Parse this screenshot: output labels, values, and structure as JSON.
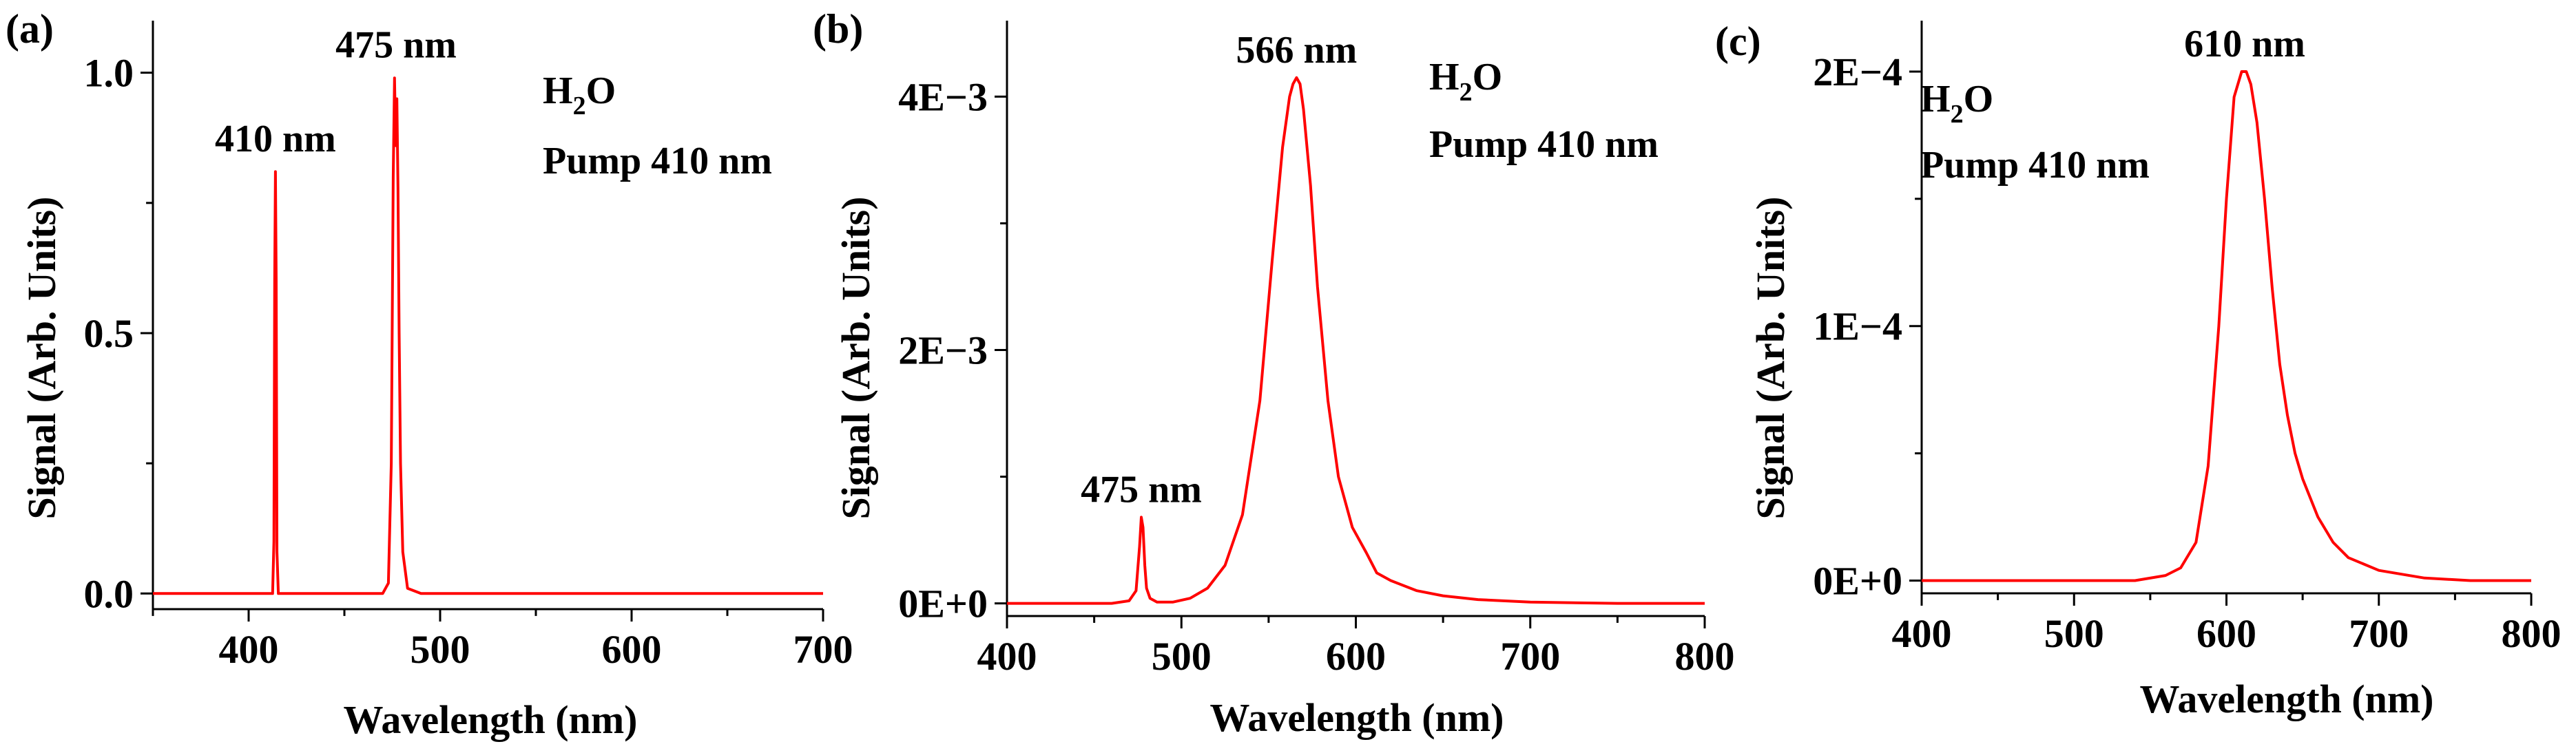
{
  "figure": {
    "panels": [
      "(a)",
      "(b)",
      "(c)"
    ]
  },
  "chart_data": [
    {
      "type": "line",
      "panel_label": "(a)",
      "xlabel": "Wavelength (nm)",
      "ylabel": "Signal (Arb. Units)",
      "xlim": [
        350,
        700
      ],
      "ylim": [
        -0.03,
        1.1
      ],
      "xticks": [
        400,
        500,
        600,
        700
      ],
      "yticks": [
        0.0,
        0.5,
        1.0
      ],
      "ytick_labels": [
        "0.0",
        "0.5",
        "1.0"
      ],
      "legend": {
        "species_main": "H",
        "species_sub": "2",
        "species_tail": "O",
        "pump": "Pump 410 nm"
      },
      "annotations": [
        {
          "text": "410 nm",
          "x": 414,
          "y": 0.82
        },
        {
          "text": "475 nm",
          "x": 477,
          "y": 1.0
        }
      ],
      "series": [
        {
          "name": "H2O, Pump 410 nm",
          "color": "#ff0000",
          "x": [
            350,
            412.5,
            413.2,
            413.6,
            414.0,
            414.4,
            414.8,
            415.5,
            470,
            473,
            474.5,
            475.5,
            476.2,
            476.8,
            477.4,
            478.0,
            478.6,
            479.3,
            480.5,
            483,
            490,
            700
          ],
          "y": [
            0.0,
            0.0,
            0.1,
            0.6,
            0.81,
            0.6,
            0.08,
            0.0,
            0.0,
            0.02,
            0.25,
            0.8,
            0.99,
            0.86,
            0.95,
            0.78,
            0.5,
            0.25,
            0.08,
            0.01,
            0.0,
            0.0
          ]
        }
      ]
    },
    {
      "type": "line",
      "panel_label": "(b)",
      "xlabel": "Wavelength (nm)",
      "ylabel": "Signal (Arb. Units)",
      "xlim": [
        400,
        800
      ],
      "ylim": [
        -0.0001,
        0.0046
      ],
      "xticks": [
        400,
        500,
        600,
        700,
        800
      ],
      "yticks": [
        0,
        0.002,
        0.004
      ],
      "ytick_labels": [
        "0E+0",
        "2E−3",
        "4E−3"
      ],
      "legend": {
        "species_main": "H",
        "species_sub": "2",
        "species_tail": "O",
        "pump": "Pump 410 nm"
      },
      "annotations": [
        {
          "text": "475 nm",
          "x": 477,
          "y": 0.00068
        },
        {
          "text": "566 nm",
          "x": 566,
          "y": 0.00415
        }
      ],
      "series": [
        {
          "name": "H2O, Pump 410 nm",
          "color": "#ff0000",
          "x": [
            400,
            460,
            470,
            474,
            476,
            477,
            478,
            479,
            480,
            482,
            486,
            495,
            505,
            515,
            525,
            535,
            545,
            552,
            558,
            562,
            564,
            566,
            568,
            570,
            574,
            578,
            584,
            590,
            598,
            606,
            609,
            612,
            620,
            635,
            650,
            670,
            700,
            750,
            800
          ],
          "y": [
            0.0,
            0.0,
            2e-05,
            0.0001,
            0.00045,
            0.00068,
            0.0006,
            0.0003,
            0.00012,
            4e-05,
            1e-05,
            1e-05,
            4e-05,
            0.00012,
            0.0003,
            0.0007,
            0.0016,
            0.0027,
            0.0036,
            0.004,
            0.0041,
            0.00415,
            0.0041,
            0.0039,
            0.0033,
            0.0025,
            0.0016,
            0.001,
            0.0006,
            0.0004,
            0.00032,
            0.00024,
            0.00018,
            0.0001,
            6e-05,
            3e-05,
            1e-05,
            0.0,
            0.0
          ]
        }
      ]
    },
    {
      "type": "line",
      "panel_label": "(c)",
      "xlabel": "Wavelength (nm)",
      "ylabel": "Signal (Arb. Units)",
      "xlim": [
        400,
        800
      ],
      "ylim": [
        -5e-06,
        0.00022
      ],
      "xticks": [
        400,
        500,
        600,
        700,
        800
      ],
      "yticks": [
        0,
        0.0001,
        0.0002
      ],
      "ytick_labels": [
        "0E+0",
        "1E−4",
        "2E−4"
      ],
      "legend": {
        "species_main": "H",
        "species_sub": "2",
        "species_tail": "O",
        "pump": "Pump 410 nm"
      },
      "annotations": [
        {
          "text": "610 nm",
          "x": 612,
          "y": 0.0002
        }
      ],
      "series": [
        {
          "name": "H2O, Pump 410 nm",
          "color": "#ff0000",
          "x": [
            400,
            540,
            560,
            570,
            580,
            588,
            595,
            600,
            605,
            610,
            613,
            616,
            620,
            625,
            630,
            635,
            640,
            645,
            650,
            660,
            670,
            680,
            700,
            730,
            760,
            800
          ],
          "y": [
            0.0,
            0.0,
            2e-06,
            5e-06,
            1.5e-05,
            4.5e-05,
            0.0001,
            0.00015,
            0.00019,
            0.0002,
            0.0002,
            0.000195,
            0.00018,
            0.00015,
            0.000115,
            8.5e-05,
            6.5e-05,
            5e-05,
            4e-05,
            2.5e-05,
            1.5e-05,
            9e-06,
            4e-06,
            1e-06,
            0.0,
            0.0
          ]
        }
      ]
    }
  ]
}
